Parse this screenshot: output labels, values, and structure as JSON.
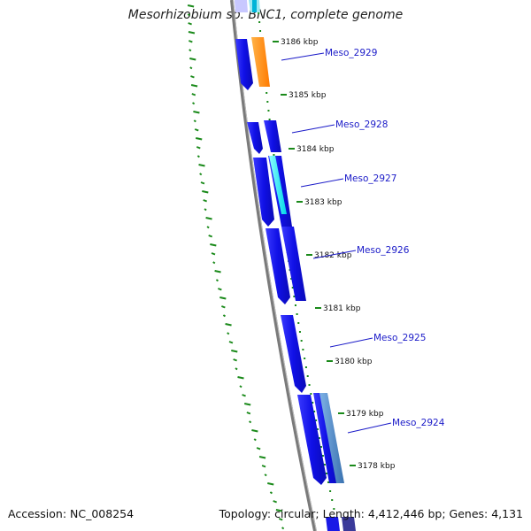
{
  "title": "Mesorhizobium sp. BNC1, complete genome",
  "footer": {
    "accession": "Accession: NC_008254",
    "summary": "Topology: circular; Length: 4,412,446 bp; Genes: 4,131"
  },
  "ticks": [
    "3186 kbp",
    "3185 kbp",
    "3184 kbp",
    "3183 kbp",
    "3182 kbp",
    "3181 kbp",
    "3180 kbp",
    "3179 kbp",
    "3178 kbp"
  ],
  "gene_labels": [
    "Meso_2929",
    "Meso_2928",
    "Meso_2927",
    "Meso_2926",
    "Meso_2925",
    "Meso_2924"
  ],
  "colors": {
    "cds": "#1a1ae6",
    "orange_feature": "#ff8c00",
    "cyan_feature": "#00e5ee",
    "steelblue_feature": "#4a86c8",
    "backbone": "#808080",
    "gc_ticks": "#1a8a1a",
    "label_text": "#1a1ac8"
  }
}
